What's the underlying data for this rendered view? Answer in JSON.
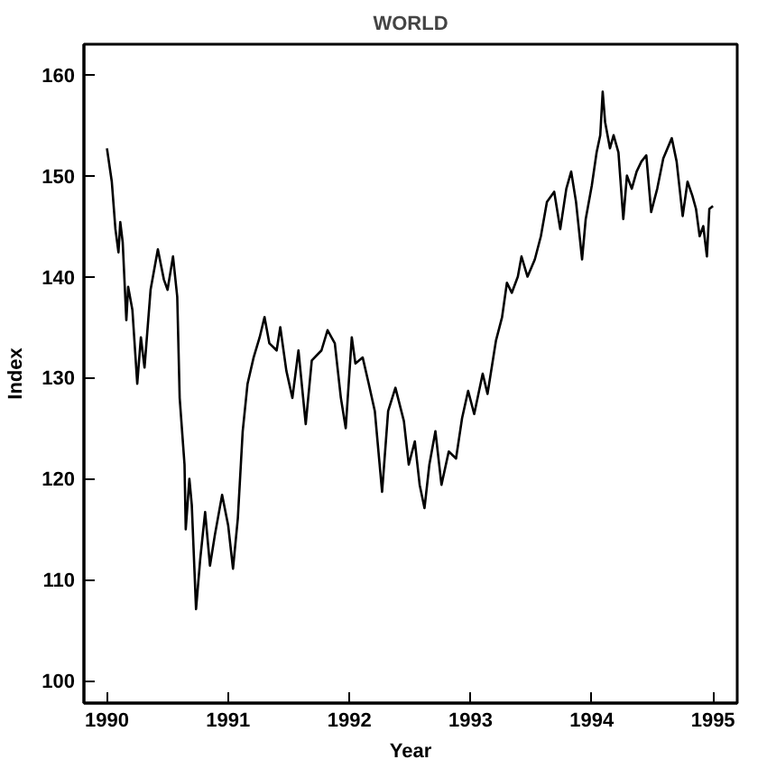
{
  "chart_data": {
    "type": "line",
    "title": "WORLD",
    "xlabel": "Year",
    "ylabel": "Index",
    "xlim": [
      1989.81,
      1995.2
    ],
    "xticks": [
      1990,
      1991,
      1992,
      1993,
      1994,
      1995
    ],
    "ylim": [
      97.8,
      163
    ],
    "yticks": [
      100,
      110,
      120,
      130,
      140,
      150,
      160
    ],
    "grid": false,
    "marker": "none",
    "line_style": "solid",
    "series": [
      {
        "color": "#000000",
        "x": [
          1990.0,
          1990.04,
          1990.07,
          1990.095,
          1990.11,
          1990.13,
          1990.16,
          1990.175,
          1990.21,
          1990.25,
          1990.28,
          1990.31,
          1990.36,
          1990.42,
          1990.47,
          1990.5,
          1990.545,
          1990.58,
          1990.6,
          1990.64,
          1990.65,
          1990.68,
          1990.7,
          1990.735,
          1990.77,
          1990.81,
          1990.85,
          1990.89,
          1990.95,
          1991.0,
          1991.04,
          1991.08,
          1991.12,
          1991.16,
          1991.21,
          1991.26,
          1991.3,
          1991.34,
          1991.4,
          1991.43,
          1991.48,
          1991.53,
          1991.58,
          1991.64,
          1991.69,
          1991.77,
          1991.82,
          1991.88,
          1991.93,
          1991.97,
          1992.02,
          1992.05,
          1992.11,
          1992.16,
          1992.21,
          1992.27,
          1992.32,
          1992.38,
          1992.45,
          1992.49,
          1992.54,
          1992.58,
          1992.62,
          1992.66,
          1992.71,
          1992.76,
          1992.82,
          1992.88,
          1992.93,
          1992.98,
          1993.03,
          1993.1,
          1993.14,
          1993.21,
          1993.26,
          1993.3,
          1993.34,
          1993.39,
          1993.42,
          1993.47,
          1993.53,
          1993.58,
          1993.63,
          1993.69,
          1993.74,
          1993.79,
          1993.83,
          1993.87,
          1993.92,
          1993.95,
          1994.0,
          1994.04,
          1994.07,
          1994.09,
          1994.11,
          1994.15,
          1994.18,
          1994.22,
          1994.26,
          1994.29,
          1994.33,
          1994.37,
          1994.41,
          1994.45,
          1994.49,
          1994.54,
          1994.59,
          1994.66,
          1994.7,
          1994.75,
          1994.79,
          1994.83,
          1994.86,
          1994.89,
          1994.92,
          1994.95,
          1994.97,
          1995.0
        ],
        "values": [
          152.7,
          149.4,
          144.7,
          142.4,
          145.4,
          143.4,
          135.7,
          139,
          136.7,
          129.4,
          134,
          131,
          138.7,
          142.7,
          139.7,
          138.7,
          142,
          138,
          128,
          121.4,
          115,
          120,
          117.4,
          107.1,
          112.1,
          116.7,
          111.4,
          114.4,
          118.4,
          115.4,
          111.1,
          116.1,
          124.7,
          129.4,
          132,
          134,
          136,
          133.4,
          132.7,
          135,
          130.7,
          128,
          132.7,
          125.4,
          131.7,
          132.7,
          134.7,
          133.4,
          128,
          125,
          134,
          131.4,
          132,
          129.4,
          126.7,
          118.7,
          126.7,
          129,
          125.7,
          121.4,
          123.7,
          119.4,
          117.1,
          121.4,
          124.7,
          119.4,
          122.7,
          122,
          126,
          128.7,
          126.4,
          130.4,
          128.4,
          133.7,
          136,
          139.4,
          138.4,
          140,
          142,
          140,
          141.7,
          144,
          147.4,
          148.4,
          144.7,
          148.7,
          150.4,
          147.4,
          141.7,
          145.7,
          149,
          152.3,
          154,
          158.3,
          155.3,
          152.7,
          154,
          152.3,
          145.7,
          150,
          148.7,
          150.4,
          151.4,
          152,
          146.4,
          148.7,
          151.7,
          153.7,
          151.4,
          146,
          149.4,
          148,
          146.7,
          144,
          145,
          142,
          146.7,
          147
        ]
      }
    ]
  }
}
